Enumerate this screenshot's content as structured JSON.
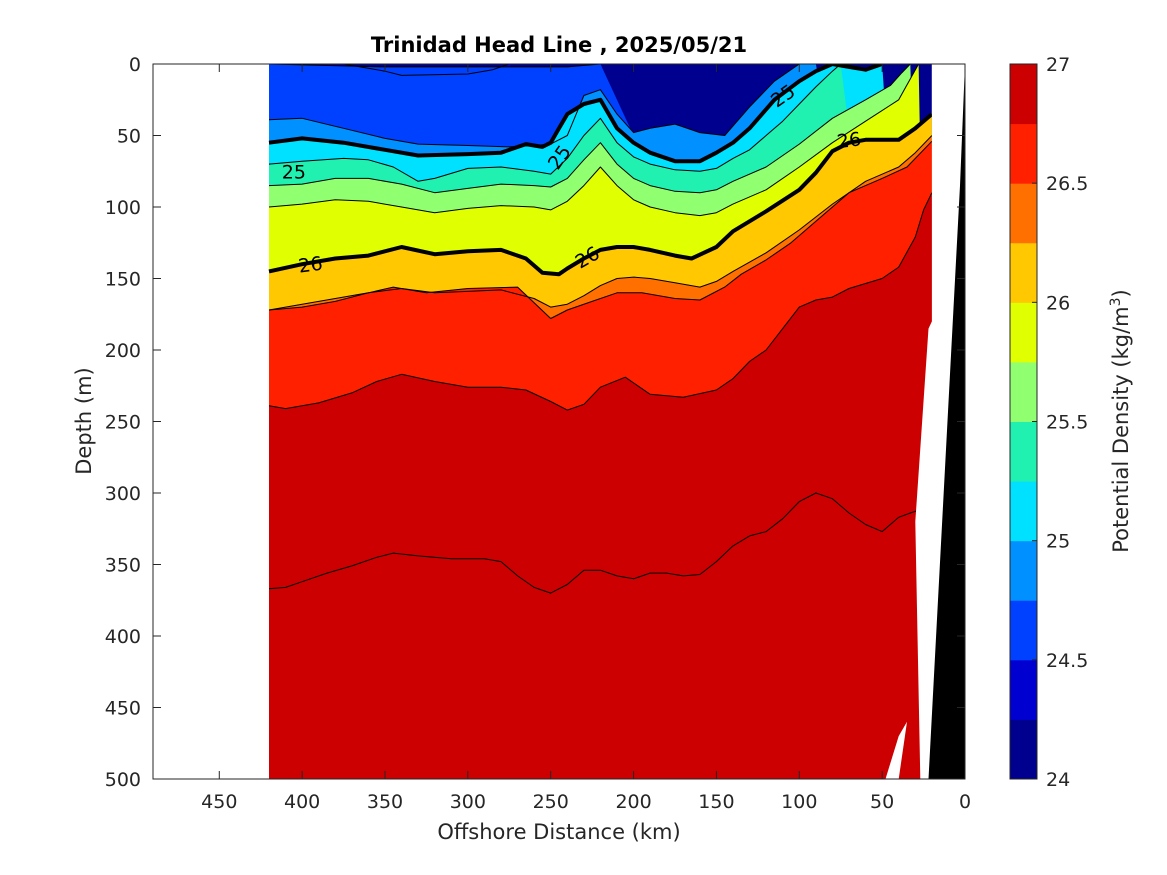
{
  "chart_data": {
    "type": "contour",
    "title": "Trinidad Head Line , 2025/05/21",
    "xlabel": "Offshore Distance (km)",
    "ylabel": "Depth (m)",
    "xlim": [
      490,
      0
    ],
    "ylim": [
      0,
      500
    ],
    "x_reversed": true,
    "y_reversed": true,
    "xticks": [
      450,
      400,
      350,
      300,
      250,
      200,
      150,
      100,
      50,
      0
    ],
    "yticks": [
      0,
      50,
      100,
      150,
      200,
      250,
      300,
      350,
      400,
      450,
      500
    ],
    "data_extent_x": [
      420,
      20
    ],
    "colorbar": {
      "label": "Potential Density (kg/m³)",
      "label_main": "Potential Density (kg/m",
      "label_sup": "3",
      "label_end": ")",
      "min": 24,
      "max": 27,
      "step": 0.25,
      "ticks": [
        24,
        24.5,
        25,
        25.5,
        26,
        26.5,
        27
      ],
      "colors": [
        "#00008f",
        "#0000d0",
        "#0040ff",
        "#0090ff",
        "#00e0ff",
        "#20f0b0",
        "#90ff70",
        "#e0ff00",
        "#ffc800",
        "#ff7000",
        "#ff2000",
        "#cc0000"
      ]
    },
    "labeled_contours": [
      {
        "level": 25,
        "label": "25"
      },
      {
        "level": 26,
        "label": "26"
      }
    ],
    "contour_labels": [
      {
        "text": "25",
        "x": 405,
        "depth": 75,
        "angle": 0
      },
      {
        "text": "25",
        "x": 245,
        "depth": 65,
        "angle": -55
      },
      {
        "text": "25",
        "x": 110,
        "depth": 22,
        "angle": -35
      },
      {
        "text": "26",
        "x": 395,
        "depth": 140,
        "angle": -8
      },
      {
        "text": "26",
        "x": 228,
        "depth": 135,
        "angle": -30
      },
      {
        "text": "26",
        "x": 70,
        "depth": 53,
        "angle": -8
      }
    ],
    "isopycnals": [
      {
        "level": 24.25,
        "x": [
          420,
          375,
          350,
          340,
          300,
          285,
          275
        ],
        "depth": [
          0,
          0,
          5,
          8,
          7,
          4,
          0
        ]
      },
      {
        "level": 24.5,
        "x": [
          420,
          350,
          300,
          260,
          240,
          220
        ],
        "depth": [
          0,
          2,
          2,
          2,
          2,
          0
        ]
      },
      {
        "level": 24.75,
        "x": [
          420,
          400,
          375,
          350,
          330,
          300,
          275,
          260,
          250,
          240,
          230,
          220,
          210,
          200,
          190,
          175,
          160,
          145,
          130,
          115,
          100,
          90
        ],
        "depth": [
          39,
          38,
          45,
          52,
          56,
          57,
          58,
          57,
          56,
          50,
          22,
          18,
          35,
          48,
          45,
          42,
          48,
          50,
          30,
          12,
          0,
          0
        ]
      },
      {
        "level": 25.0,
        "x": [
          420,
          400,
          375,
          350,
          330,
          300,
          280,
          265,
          255,
          250,
          245,
          240,
          230,
          220,
          210,
          200,
          190,
          175,
          160,
          150,
          140,
          130,
          115,
          100,
          90,
          80,
          70,
          60,
          50
        ],
        "depth": [
          55,
          52,
          55,
          60,
          64,
          63,
          62,
          56,
          58,
          55,
          45,
          35,
          28,
          25,
          45,
          55,
          62,
          68,
          68,
          62,
          55,
          45,
          25,
          12,
          5,
          0,
          2,
          4,
          0
        ]
      },
      {
        "level": 25.25,
        "x": [
          420,
          400,
          375,
          360,
          345,
          330,
          320,
          300,
          280,
          260,
          250,
          240,
          230,
          220,
          210,
          200,
          190,
          175,
          160,
          150,
          140,
          130,
          120,
          110,
          100,
          90,
          80,
          75
        ],
        "depth": [
          70,
          68,
          66,
          67,
          72,
          82,
          80,
          73,
          72,
          75,
          77,
          66,
          50,
          38,
          55,
          65,
          70,
          74,
          75,
          73,
          66,
          60,
          50,
          40,
          28,
          16,
          5,
          0
        ]
      },
      {
        "level": 25.5,
        "x": [
          420,
          400,
          380,
          360,
          340,
          320,
          300,
          280,
          260,
          250,
          240,
          230,
          220,
          210,
          200,
          190,
          175,
          160,
          150,
          140,
          120,
          100,
          80,
          60,
          45,
          38,
          33
        ],
        "depth": [
          85,
          84,
          80,
          80,
          84,
          90,
          87,
          84,
          85,
          86,
          80,
          67,
          55,
          70,
          80,
          85,
          89,
          90,
          88,
          82,
          72,
          56,
          38,
          25,
          15,
          6,
          0
        ]
      },
      {
        "level": 25.75,
        "x": [
          420,
          400,
          380,
          360,
          340,
          320,
          300,
          280,
          260,
          250,
          240,
          230,
          220,
          210,
          200,
          190,
          175,
          160,
          150,
          140,
          120,
          100,
          80,
          60,
          40,
          28
        ],
        "depth": [
          100,
          98,
          95,
          96,
          100,
          104,
          101,
          99,
          100,
          102,
          96,
          85,
          72,
          85,
          95,
          100,
          104,
          106,
          104,
          98,
          88,
          72,
          55,
          40,
          25,
          0
        ]
      },
      {
        "level": 26.0,
        "x": [
          420,
          400,
          380,
          360,
          340,
          320,
          300,
          280,
          265,
          255,
          245,
          240,
          230,
          220,
          210,
          200,
          190,
          175,
          165,
          150,
          140,
          120,
          100,
          90,
          80,
          70,
          60,
          50,
          40,
          30,
          20
        ],
        "depth": [
          145,
          140,
          136,
          134,
          128,
          133,
          131,
          130,
          136,
          146,
          147,
          143,
          136,
          130,
          128,
          128,
          130,
          134,
          136,
          128,
          117,
          103,
          88,
          76,
          61,
          55,
          53,
          53,
          53,
          45,
          35
        ]
      },
      {
        "level": 26.25,
        "x": [
          420,
          400,
          380,
          360,
          340,
          320,
          300,
          280,
          260,
          250,
          240,
          230,
          220,
          210,
          200,
          190,
          175,
          160,
          150,
          140,
          120,
          100,
          80,
          60,
          40,
          30,
          20
        ],
        "depth": [
          172,
          168,
          164,
          160,
          157,
          160,
          159,
          158,
          164,
          170,
          168,
          162,
          155,
          150,
          149,
          150,
          153,
          156,
          152,
          145,
          132,
          116,
          98,
          82,
          72,
          62,
          50
        ]
      },
      {
        "level": 26.5,
        "x": [
          420,
          400,
          380,
          360,
          345,
          325,
          300,
          270,
          250,
          240,
          225,
          210,
          195,
          175,
          160,
          145,
          135,
          120,
          105,
          90,
          70,
          50,
          35,
          25,
          20
        ],
        "depth": [
          172,
          170,
          166,
          160,
          156,
          160,
          157,
          156,
          178,
          172,
          166,
          160,
          160,
          164,
          165,
          156,
          147,
          137,
          125,
          110,
          90,
          80,
          72,
          60,
          54
        ]
      },
      {
        "level": 26.75,
        "x": [
          420,
          410,
          390,
          370,
          355,
          340,
          320,
          300,
          280,
          265,
          250,
          240,
          230,
          220,
          205,
          190,
          170,
          150,
          140,
          130,
          120,
          110,
          100,
          90,
          80,
          70,
          50,
          40,
          30,
          25,
          20
        ],
        "depth": [
          239,
          241,
          237,
          230,
          222,
          217,
          222,
          226,
          226,
          228,
          236,
          242,
          238,
          226,
          219,
          231,
          233,
          228,
          220,
          208,
          200,
          185,
          170,
          165,
          163,
          157,
          150,
          142,
          121,
          102,
          90
        ]
      },
      {
        "level": 27.0,
        "x": [
          420,
          410,
          400,
          385,
          370,
          355,
          345,
          330,
          310,
          290,
          280,
          270,
          260,
          250,
          240,
          230,
          220,
          210,
          200,
          190,
          180,
          170,
          160,
          150,
          140,
          130,
          120,
          110,
          100,
          90,
          80,
          70,
          60,
          50,
          40,
          33,
          28
        ],
        "depth": [
          367,
          366,
          362,
          356,
          351,
          345,
          342,
          344,
          346,
          346,
          348,
          358,
          366,
          370,
          364,
          354,
          354,
          358,
          360,
          356,
          356,
          358,
          357,
          348,
          337,
          330,
          327,
          318,
          306,
          300,
          304,
          314,
          322,
          327,
          317,
          314,
          312
        ]
      }
    ],
    "bathymetry_x": [
      27,
      22,
      3,
      0
    ],
    "bathymetry_depth": [
      500,
      500,
      85,
      0
    ],
    "nodata_notch_x": [
      48,
      40,
      35,
      40
    ],
    "nodata_notch_depth": [
      500,
      470,
      460,
      500
    ]
  }
}
